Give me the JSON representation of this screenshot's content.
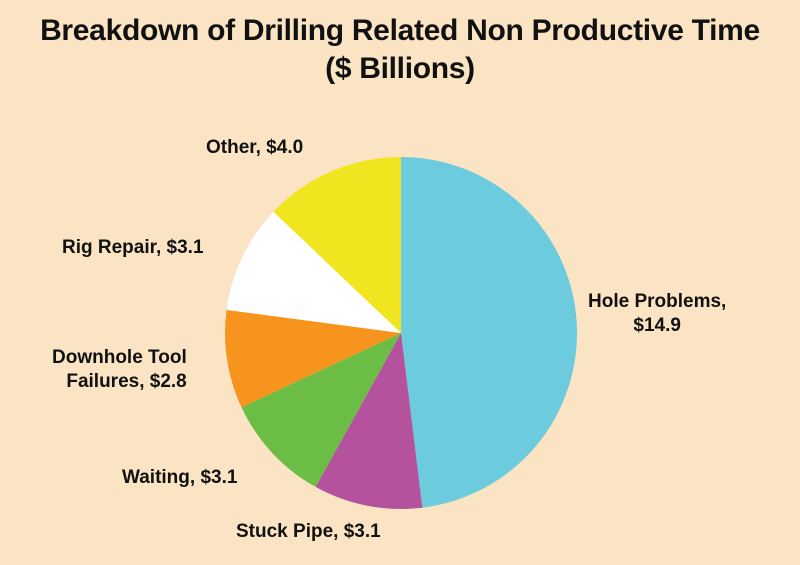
{
  "chart_data": {
    "type": "pie",
    "title": "Breakdown of Drilling Related Non Productive Time",
    "subtitle": "($ Billions)",
    "slices": [
      {
        "label": "Hole Problems",
        "value": 14.9,
        "color": "#6ccbdd",
        "label_text": [
          "Hole Problems,",
          "$14.9"
        ]
      },
      {
        "label": "Stuck Pipe",
        "value": 3.1,
        "color": "#b4529e",
        "label_text": [
          "Stuck Pipe, $3.1"
        ]
      },
      {
        "label": "Waiting",
        "value": 3.1,
        "color": "#6cbd45",
        "label_text": [
          "Waiting, $3.1"
        ]
      },
      {
        "label": "Downhole Tool Failures",
        "value": 2.8,
        "color": "#f7941d",
        "label_text": [
          "Downhole Tool",
          "Failures, $2.8"
        ]
      },
      {
        "label": "Rig Repair",
        "value": 3.1,
        "color": "#ffffff",
        "label_text": [
          "Rig Repair, $3.1"
        ]
      },
      {
        "label": "Other",
        "value": 4.0,
        "color": "#f1e51f",
        "label_text": [
          "Other, $4.0"
        ]
      }
    ]
  },
  "background_color": "#fbe4c4"
}
